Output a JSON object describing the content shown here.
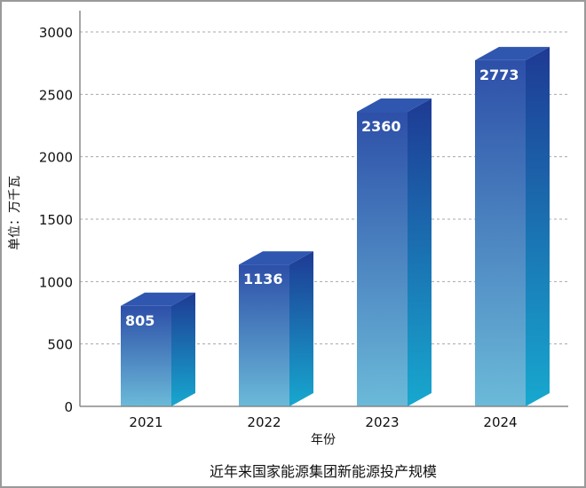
{
  "chart_data": {
    "type": "bar",
    "title": "近年来国家能源集团新能源投产规模",
    "xlabel": "年份",
    "ylabel": "单位：万千瓦",
    "categories": [
      "2021",
      "2022",
      "2023",
      "2024"
    ],
    "values": [
      805,
      1136,
      2360,
      2773
    ],
    "ylim": [
      0,
      3000
    ],
    "yticks": [
      0,
      500,
      1000,
      1500,
      2000,
      2500,
      3000
    ],
    "grid": true,
    "style": "3d-column",
    "colors": {
      "top": "#2f57b0",
      "front_top": "#2d4fa8",
      "front_bottom": "#6bbad9",
      "side_top": "#1e3a94",
      "side_bottom": "#17a8cf"
    }
  }
}
